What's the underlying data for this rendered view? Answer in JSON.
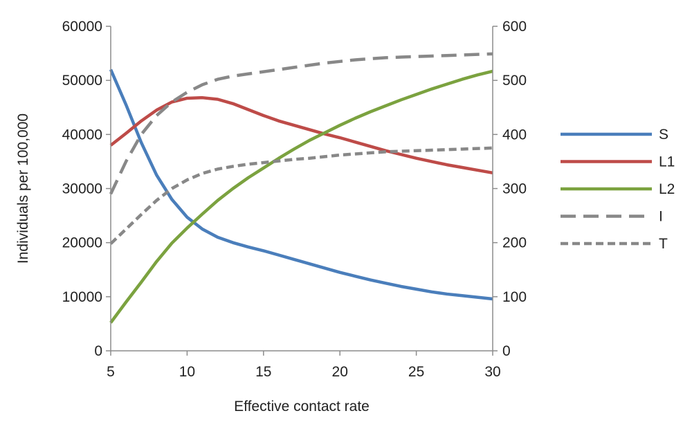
{
  "chart_data": {
    "type": "line",
    "xlabel": "Effective contact rate",
    "ylabel": "Individuals per 100,000",
    "xlim": [
      5,
      30
    ],
    "ylim": [
      0,
      60000
    ],
    "y2lim": [
      0,
      600
    ],
    "x_ticks": [
      "5",
      "10",
      "15",
      "20",
      "25",
      "30"
    ],
    "y_ticks": [
      "0",
      "10000",
      "20000",
      "30000",
      "40000",
      "50000",
      "60000"
    ],
    "y2_ticks": [
      "0",
      "100",
      "200",
      "300",
      "400",
      "500",
      "600"
    ],
    "grid": false,
    "legend_position": "right",
    "x": [
      5,
      6,
      7,
      8,
      9,
      10,
      11,
      12,
      13,
      14,
      15,
      16,
      17,
      18,
      19,
      20,
      21,
      22,
      23,
      24,
      25,
      26,
      27,
      28,
      29,
      30
    ],
    "series": [
      {
        "name": "S",
        "axis": "left",
        "color": "#4a7ebb",
        "dash": "solid",
        "values": [
          52000,
          45500,
          38500,
          32500,
          28000,
          24700,
          22500,
          21000,
          20000,
          19200,
          18500,
          17700,
          16900,
          16100,
          15300,
          14500,
          13800,
          13100,
          12500,
          11900,
          11400,
          10900,
          10500,
          10200,
          9900,
          9600
        ]
      },
      {
        "name": "L1",
        "axis": "left",
        "color": "#be4b48",
        "dash": "solid",
        "values": [
          38000,
          40200,
          42500,
          44500,
          46000,
          46700,
          46800,
          46500,
          45700,
          44600,
          43500,
          42500,
          41700,
          40900,
          40100,
          39400,
          38600,
          37800,
          37000,
          36300,
          35600,
          35000,
          34400,
          33900,
          33400,
          32900
        ]
      },
      {
        "name": "L2",
        "axis": "left",
        "color": "#7ba23f",
        "dash": "solid",
        "values": [
          5200,
          9000,
          12700,
          16500,
          19900,
          22700,
          25300,
          27800,
          30000,
          32000,
          33800,
          35600,
          37300,
          38900,
          40300,
          41700,
          43000,
          44200,
          45300,
          46400,
          47400,
          48400,
          49300,
          50200,
          51000,
          51700
        ]
      },
      {
        "name": "I",
        "axis": "right",
        "color": "#888888",
        "dash": "long",
        "values": [
          290,
          350,
          400,
          435,
          460,
          478,
          492,
          502,
          508,
          512,
          516,
          520,
          524,
          528,
          532,
          535,
          538,
          540,
          542,
          543,
          544,
          545,
          546,
          547,
          548,
          549
        ]
      },
      {
        "name": "T",
        "axis": "right",
        "color": "#888888",
        "dash": "short",
        "values": [
          198,
          225,
          252,
          278,
          300,
          316,
          328,
          336,
          341,
          345,
          348,
          351,
          354,
          356,
          359,
          362,
          364,
          366,
          368,
          369,
          370,
          371,
          372,
          373,
          374,
          375
        ]
      }
    ]
  }
}
